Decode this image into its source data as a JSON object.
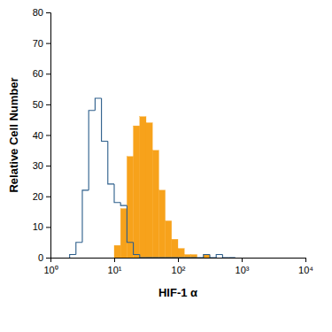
{
  "chart_data": {
    "type": "histogram",
    "x_label": "HIF-1 α",
    "y_label": "Relative Cell Number",
    "log": "x",
    "bins": [
      2.0,
      2.51,
      3.16,
      3.98,
      5.01,
      6.31,
      7.94,
      10,
      12.59,
      15.85,
      19.95,
      25.12,
      31.62,
      39.81,
      50.12,
      63.1,
      79.43,
      100,
      125.9,
      158.5,
      199.5,
      251.2,
      316.2,
      398.1,
      501.2,
      631,
      794.3
    ],
    "series": [
      {
        "type": "filled",
        "color": "#f7a21b",
        "values": [
          0,
          0,
          0,
          0,
          0,
          0,
          0,
          4,
          16,
          33,
          43,
          46,
          44,
          35,
          22,
          12,
          6,
          3,
          1,
          1,
          0,
          1,
          0,
          0,
          0,
          0
        ]
      },
      {
        "type": "outline",
        "color": "#2b5d8a",
        "values": [
          1,
          5,
          22,
          48,
          52,
          38,
          24,
          18,
          17,
          5,
          1,
          0,
          0,
          0,
          0,
          0,
          0,
          0,
          0,
          0,
          0,
          1,
          0,
          1,
          0,
          0
        ]
      }
    ],
    "xlim": [
      1,
      10000
    ],
    "xticks": [
      {
        "value": 1,
        "label": "10⁰"
      },
      {
        "value": 10,
        "label": "10¹"
      },
      {
        "value": 100,
        "label": "10²"
      },
      {
        "value": 1000,
        "label": "10³"
      },
      {
        "value": 10000,
        "label": "10⁴"
      }
    ],
    "ylim": [
      0,
      80
    ],
    "yticks": [
      0,
      10,
      20,
      30,
      40,
      50,
      60,
      70,
      80
    ]
  }
}
